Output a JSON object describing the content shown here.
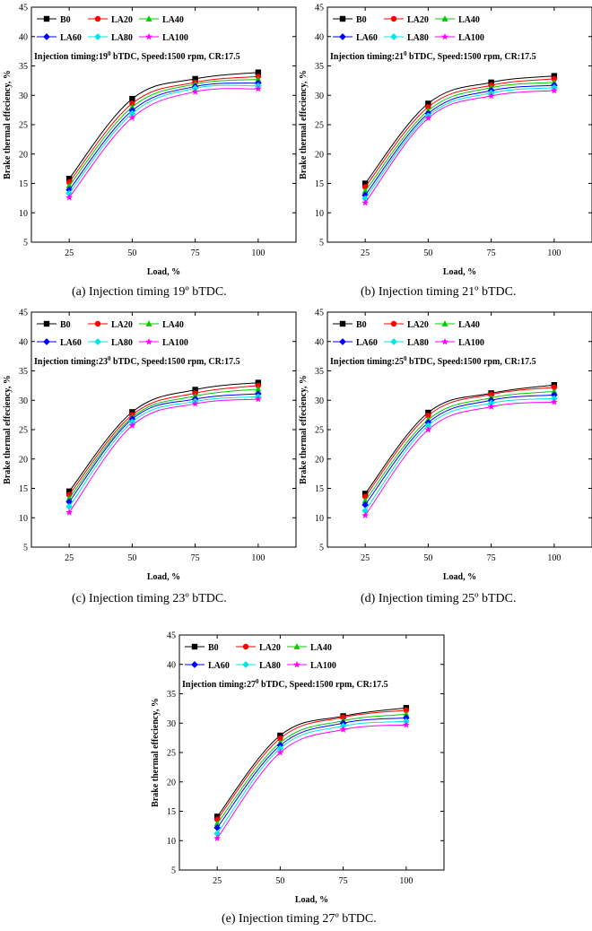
{
  "chart_data": [
    {
      "id": "a",
      "type": "line",
      "annotation": "Injection timing:19",
      "annotation_sup": "0",
      "annotation_rest": " bTDC, Speed:1500 rpm, CR:17.5",
      "xlabel": "Load, %",
      "ylabel": "Brake thermal effeciency, %",
      "x": [
        25,
        50,
        75,
        100
      ],
      "ylim": [
        5,
        45
      ],
      "yticks": [
        5,
        10,
        15,
        20,
        25,
        30,
        35,
        40,
        45
      ],
      "series": [
        {
          "name": "B0",
          "color": "#000000",
          "marker": "square",
          "values": [
            15.8,
            29.4,
            32.8,
            33.9
          ]
        },
        {
          "name": "LA20",
          "color": "#ff0000",
          "marker": "circle",
          "values": [
            15.2,
            28.6,
            32.2,
            33.2
          ]
        },
        {
          "name": "LA40",
          "color": "#00cc00",
          "marker": "triangle",
          "values": [
            14.6,
            28.0,
            31.9,
            32.7
          ]
        },
        {
          "name": "LA60",
          "color": "#0000ff",
          "marker": "diamond",
          "values": [
            13.9,
            27.4,
            31.5,
            32.1
          ]
        },
        {
          "name": "LA80",
          "color": "#00e5e5",
          "marker": "diamond",
          "values": [
            13.3,
            26.9,
            31.2,
            31.6
          ]
        },
        {
          "name": "LA100",
          "color": "#ff00ff",
          "marker": "star",
          "values": [
            12.6,
            26.2,
            30.6,
            31.1
          ]
        }
      ],
      "caption": "(a) Injection timing 19º bTDC."
    },
    {
      "id": "b",
      "type": "line",
      "annotation": "Injection timing:21",
      "annotation_sup": "0",
      "annotation_rest": " bTDC, Speed:1500 rpm, CR:17.5",
      "xlabel": "Load, %",
      "ylabel": "Brake thermal effeciency, %",
      "x": [
        25,
        50,
        75,
        100
      ],
      "ylim": [
        5,
        45
      ],
      "yticks": [
        5,
        10,
        15,
        20,
        25,
        30,
        35,
        40,
        45
      ],
      "series": [
        {
          "name": "B0",
          "color": "#000000",
          "marker": "square",
          "values": [
            15.0,
            28.6,
            32.2,
            33.3
          ]
        },
        {
          "name": "LA20",
          "color": "#ff0000",
          "marker": "circle",
          "values": [
            14.4,
            28.0,
            31.7,
            32.8
          ]
        },
        {
          "name": "LA40",
          "color": "#00cc00",
          "marker": "triangle",
          "values": [
            13.7,
            27.4,
            31.3,
            32.2
          ]
        },
        {
          "name": "LA60",
          "color": "#0000ff",
          "marker": "diamond",
          "values": [
            13.0,
            26.9,
            30.8,
            31.7
          ]
        },
        {
          "name": "LA80",
          "color": "#00e5e5",
          "marker": "diamond",
          "values": [
            12.4,
            26.5,
            30.4,
            31.3
          ]
        },
        {
          "name": "LA100",
          "color": "#ff00ff",
          "marker": "star",
          "values": [
            11.7,
            26.1,
            29.9,
            30.8
          ]
        }
      ],
      "caption": "(b) Injection timing 21º bTDC."
    },
    {
      "id": "c",
      "type": "line",
      "annotation": "Injection timing:23",
      "annotation_sup": "0",
      "annotation_rest": " bTDC, Speed:1500 rpm, CR:17.5",
      "xlabel": "Load, %",
      "ylabel": "Brake thermal effeciency, %",
      "x": [
        25,
        50,
        75,
        100
      ],
      "ylim": [
        5,
        45
      ],
      "yticks": [
        5,
        10,
        15,
        20,
        25,
        30,
        35,
        40,
        45
      ],
      "series": [
        {
          "name": "B0",
          "color": "#000000",
          "marker": "square",
          "values": [
            14.5,
            28.0,
            31.8,
            33.0
          ]
        },
        {
          "name": "LA20",
          "color": "#ff0000",
          "marker": "circle",
          "values": [
            13.9,
            27.5,
            31.2,
            32.5
          ]
        },
        {
          "name": "LA40",
          "color": "#00cc00",
          "marker": "triangle",
          "values": [
            13.3,
            27.1,
            30.7,
            31.9
          ]
        },
        {
          "name": "LA60",
          "color": "#0000ff",
          "marker": "diamond",
          "values": [
            12.7,
            26.8,
            30.2,
            31.1
          ]
        },
        {
          "name": "LA80",
          "color": "#00e5e5",
          "marker": "diamond",
          "values": [
            11.9,
            26.3,
            29.8,
            30.6
          ]
        },
        {
          "name": "LA100",
          "color": "#ff00ff",
          "marker": "star",
          "values": [
            10.9,
            25.7,
            29.4,
            30.2
          ]
        }
      ],
      "caption": "(c) Injection timing 23º bTDC."
    },
    {
      "id": "d",
      "type": "line",
      "annotation": "Injection timing:25",
      "annotation_sup": "0",
      "annotation_rest": " bTDC, Speed:1500 rpm, CR:17.5",
      "xlabel": "Load, %",
      "ylabel": "Brake thermal effeciency, %",
      "x": [
        25,
        50,
        75,
        100
      ],
      "ylim": [
        5,
        45
      ],
      "yticks": [
        5,
        10,
        15,
        20,
        25,
        30,
        35,
        40,
        45
      ],
      "series": [
        {
          "name": "B0",
          "color": "#000000",
          "marker": "square",
          "values": [
            14.1,
            27.9,
            31.2,
            32.6
          ]
        },
        {
          "name": "LA20",
          "color": "#ff0000",
          "marker": "circle",
          "values": [
            13.6,
            27.4,
            31.0,
            32.2
          ]
        },
        {
          "name": "LA40",
          "color": "#00cc00",
          "marker": "triangle",
          "values": [
            12.9,
            26.7,
            30.4,
            31.5
          ]
        },
        {
          "name": "LA60",
          "color": "#0000ff",
          "marker": "diamond",
          "values": [
            12.2,
            26.2,
            30.0,
            30.9
          ]
        },
        {
          "name": "LA80",
          "color": "#00e5e5",
          "marker": "diamond",
          "values": [
            11.2,
            25.7,
            29.5,
            30.3
          ]
        },
        {
          "name": "LA100",
          "color": "#ff00ff",
          "marker": "star",
          "values": [
            10.4,
            25.0,
            28.9,
            29.7
          ]
        }
      ],
      "caption": "(d) Injection timing 25º bTDC."
    },
    {
      "id": "e",
      "type": "line",
      "annotation": "Injection timing:27",
      "annotation_sup": "0",
      "annotation_rest": " bTDC, Speed:1500 rpm, CR:17.5",
      "xlabel": "Load, %",
      "ylabel": "Brake thermal effeciency, %",
      "x": [
        25,
        50,
        75,
        100
      ],
      "ylim": [
        5,
        45
      ],
      "yticks": [
        5,
        10,
        15,
        20,
        25,
        30,
        35,
        40,
        45
      ],
      "series": [
        {
          "name": "B0",
          "color": "#000000",
          "marker": "square",
          "values": [
            14.1,
            27.9,
            31.2,
            32.6
          ]
        },
        {
          "name": "LA20",
          "color": "#ff0000",
          "marker": "circle",
          "values": [
            13.6,
            27.4,
            31.0,
            32.2
          ]
        },
        {
          "name": "LA40",
          "color": "#00cc00",
          "marker": "triangle",
          "values": [
            12.9,
            26.7,
            30.4,
            31.5
          ]
        },
        {
          "name": "LA60",
          "color": "#0000ff",
          "marker": "diamond",
          "values": [
            12.2,
            26.2,
            30.0,
            30.9
          ]
        },
        {
          "name": "LA80",
          "color": "#00e5e5",
          "marker": "diamond",
          "values": [
            11.2,
            25.7,
            29.5,
            30.3
          ]
        },
        {
          "name": "LA100",
          "color": "#ff00ff",
          "marker": "star",
          "values": [
            10.4,
            25.0,
            28.9,
            29.7
          ]
        }
      ],
      "caption": "(e) Injection timing 27º bTDC."
    }
  ]
}
